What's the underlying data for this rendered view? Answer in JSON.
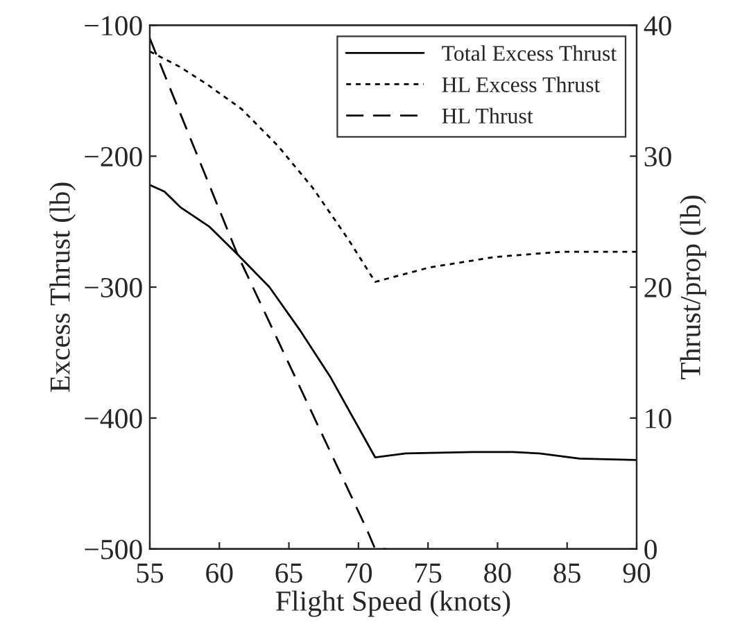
{
  "chart_data": {
    "type": "line",
    "xlabel": "Flight Speed (knots)",
    "ylabel": "Excess Thrust (lb)",
    "y2label": "Thrust/prop (lb)",
    "xlim": [
      55,
      90
    ],
    "xticks": [
      55,
      60,
      65,
      70,
      75,
      80,
      85,
      90
    ],
    "ylim": [
      -500,
      -100
    ],
    "yticks": [
      -500,
      -400,
      -300,
      -200,
      -100
    ],
    "y2lim": [
      0,
      40
    ],
    "y2ticks": [
      0,
      10,
      20,
      30,
      40
    ],
    "legend": "top right",
    "grid": false,
    "series": [
      {
        "name": "Total Excess Thrust",
        "color": "#000000",
        "line_style": "solid",
        "x": [
          55,
          56.05,
          57.2,
          59.3,
          61.3,
          63.6,
          65.8,
          68.0,
          71.2,
          73.4,
          78.25,
          81.1,
          83.0,
          85.9,
          90
        ],
        "values": [
          -222,
          -227,
          -239,
          -254,
          -275,
          -300,
          -333,
          -369,
          -430,
          -427,
          -426,
          -426,
          -427,
          -431,
          -432
        ]
      },
      {
        "name": "HL Excess Thrust",
        "color": "#000000",
        "line_style": "dotted",
        "x": [
          55,
          57.2,
          59.1,
          61.6,
          64.2,
          66.7,
          69.3,
          71.2,
          75.1,
          79.8,
          84.6,
          90
        ],
        "values": [
          -120,
          -132,
          -145,
          -164,
          -192,
          -224,
          -264,
          -296,
          -285,
          -277,
          -273,
          -273
        ]
      },
      {
        "name": "HL Thrust",
        "color": "#000000",
        "line_style": "dashed",
        "axis": "y2",
        "x": [
          55,
          61.3,
          70.6,
          71.2,
          72
        ],
        "values": [
          39,
          22.5,
          1.5,
          0,
          0
        ]
      }
    ]
  }
}
